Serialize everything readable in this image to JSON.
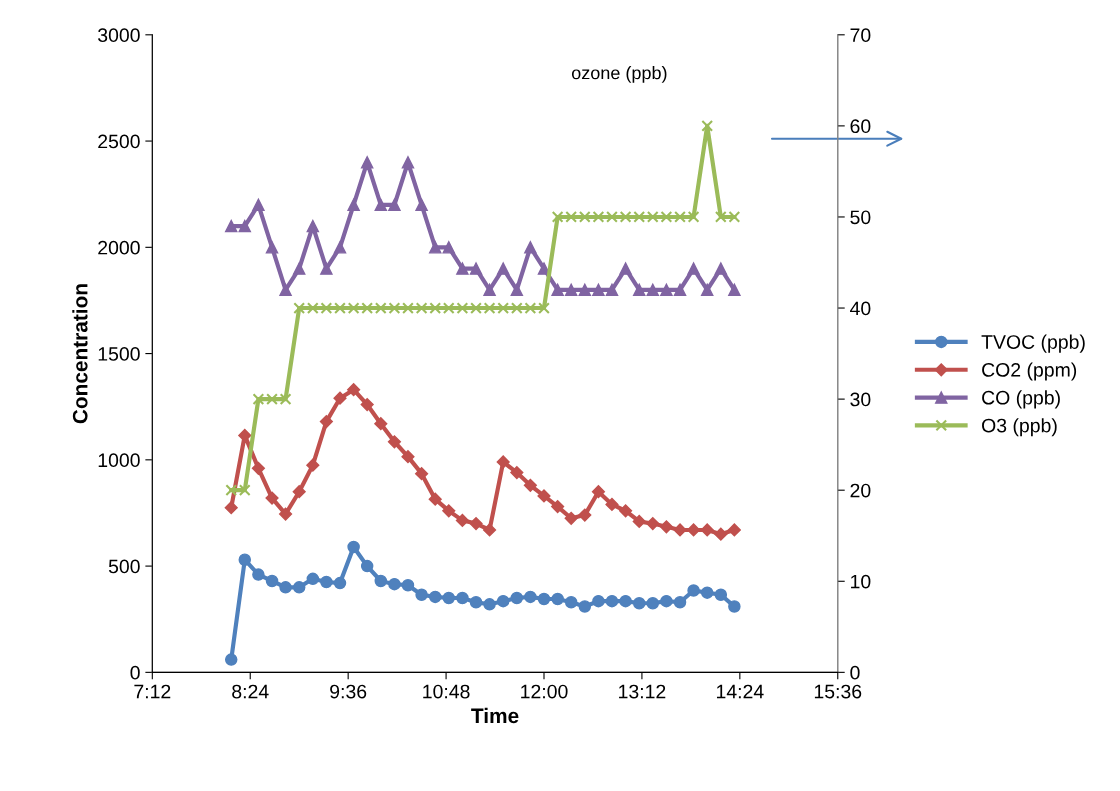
{
  "chart_data": {
    "type": "line",
    "xlabel": "Time",
    "ylabel": "Concentration",
    "x": [
      8.167,
      8.333,
      8.5,
      8.667,
      8.833,
      9.0,
      9.167,
      9.333,
      9.5,
      9.667,
      9.833,
      10.0,
      10.167,
      10.333,
      10.5,
      10.667,
      10.833,
      11.0,
      11.167,
      11.333,
      11.5,
      11.667,
      11.833,
      12.0,
      12.167,
      12.333,
      12.5,
      12.667,
      12.833,
      13.0,
      13.167,
      13.333,
      13.5,
      13.667,
      13.833,
      14.0,
      14.167,
      14.333
    ],
    "xlim": [
      7.2,
      15.6
    ],
    "xticks": [
      {
        "value": 7.2,
        "label": "7:12"
      },
      {
        "value": 8.4,
        "label": "8:24"
      },
      {
        "value": 9.6,
        "label": "9:36"
      },
      {
        "value": 10.8,
        "label": "10:48"
      },
      {
        "value": 12,
        "label": "12:00"
      },
      {
        "value": 13.2,
        "label": "13:12"
      },
      {
        "value": 14.4,
        "label": "14:24"
      },
      {
        "value": 15.6,
        "label": "15:36"
      }
    ],
    "ylim": [
      0,
      3000
    ],
    "yticks": [
      0,
      500,
      1000,
      1500,
      2000,
      2500,
      3000
    ],
    "y2lim": [
      0,
      70
    ],
    "y2ticks": [
      0,
      10,
      20,
      30,
      40,
      50,
      60,
      70
    ],
    "grid": false,
    "legend": "right",
    "line_style": "solid",
    "annotations": [
      "ozone (ppb)"
    ],
    "series": [
      {
        "name": "TVOC (ppb)",
        "color": "#4f81bd",
        "marker": "circle",
        "values": [
          60,
          530,
          460,
          430,
          400,
          400,
          440,
          425,
          420,
          590,
          500,
          430,
          415,
          410,
          365,
          355,
          350,
          350,
          330,
          320,
          335,
          350,
          355,
          345,
          345,
          330,
          310,
          335,
          335,
          335,
          325,
          325,
          335,
          330,
          385,
          375,
          365,
          310
        ]
      },
      {
        "name": "CO2 (ppm)",
        "color": "#c0504d",
        "marker": "diamond",
        "values": [
          775,
          1115,
          960,
          820,
          745,
          850,
          975,
          1180,
          1290,
          1330,
          1260,
          1170,
          1085,
          1015,
          935,
          815,
          760,
          715,
          700,
          670,
          990,
          940,
          880,
          830,
          780,
          725,
          740,
          850,
          790,
          760,
          710,
          700,
          685,
          670,
          670,
          670,
          650,
          670
        ]
      },
      {
        "name": "CO (ppb)",
        "color": "#8064a2",
        "marker": "triangle",
        "values": [
          2100,
          2100,
          2200,
          2000,
          1800,
          1900,
          2100,
          1900,
          2000,
          2200,
          2400,
          2200,
          2200,
          2400,
          2200,
          2000,
          2000,
          1900,
          1900,
          1800,
          1900,
          1800,
          2000,
          1900,
          1800,
          1800,
          1800,
          1800,
          1800,
          1900,
          1800,
          1800,
          1800,
          1800,
          1900,
          1800,
          1900,
          1800
        ]
      },
      {
        "name": "O3 (ppb)",
        "color": "#9bbb59",
        "marker": "cross",
        "axis": "y2",
        "values": [
          20,
          20,
          30,
          30,
          30,
          40,
          40,
          40,
          40,
          40,
          40,
          40,
          40,
          40,
          40,
          40,
          40,
          40,
          40,
          40,
          40,
          40,
          40,
          40,
          50,
          50,
          50,
          50,
          50,
          50,
          50,
          50,
          50,
          50,
          50,
          60,
          50,
          50
        ]
      }
    ]
  }
}
